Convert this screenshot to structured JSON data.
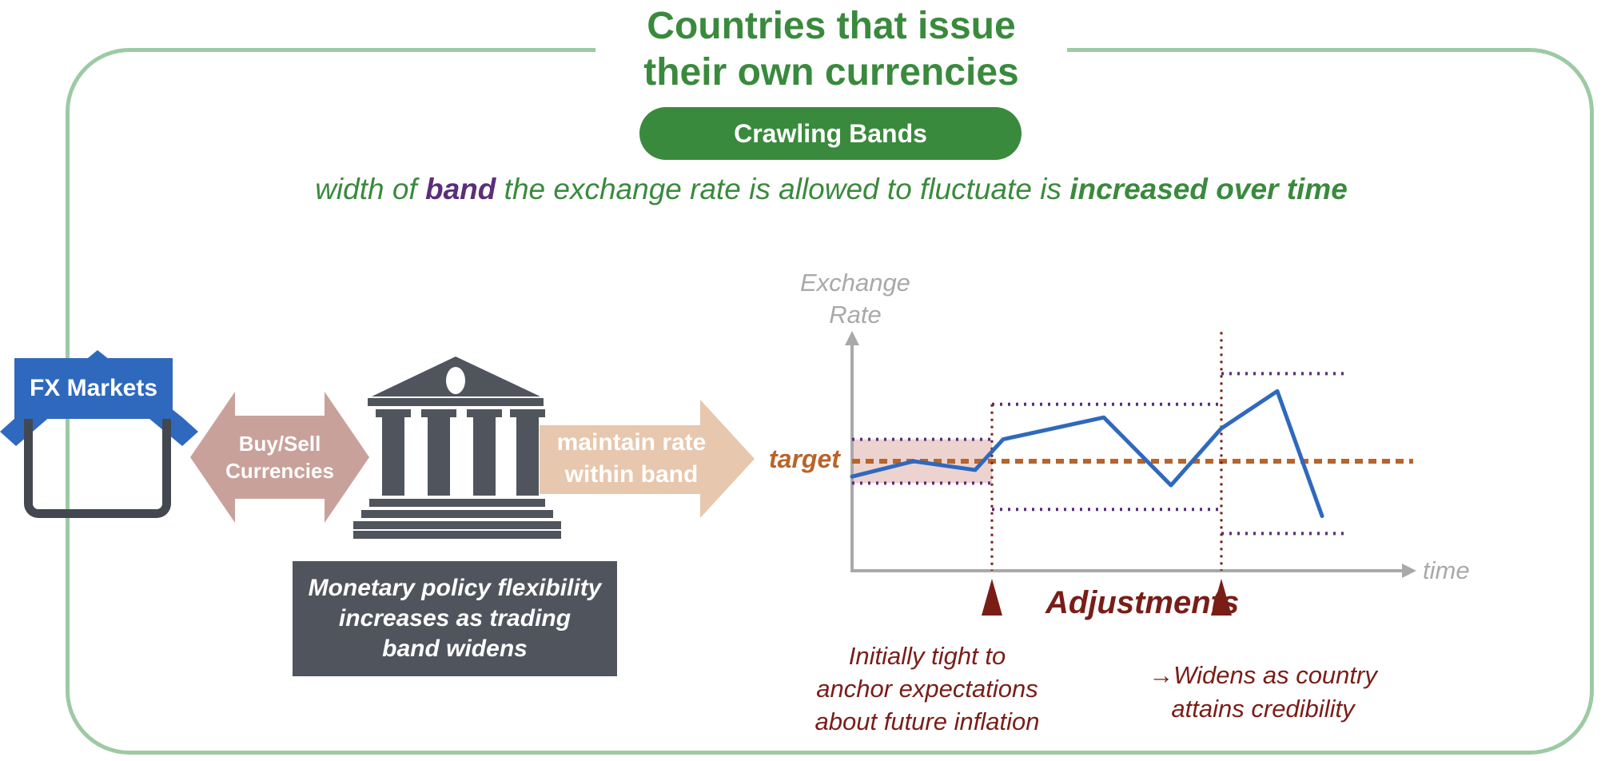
{
  "header": {
    "title_line1": "Countries that issue",
    "title_line2": "their own currencies",
    "pill_label": "Crawling Bands"
  },
  "subtitle": {
    "part1": "width of ",
    "band": "band",
    "part2": " the exchange rate is allowed to fluctuate is ",
    "emph": "increased over time"
  },
  "flow": {
    "fx_markets": "FX Markets",
    "buy_sell_line1": "Buy/Sell",
    "buy_sell_line2": "Currencies",
    "maintain_line1": "maintain rate",
    "maintain_line2": "within band",
    "callout_line1": "Monetary policy flexibility",
    "callout_line2": "increases as trading",
    "callout_line3": "band widens"
  },
  "chart_labels": {
    "y_axis_line1": "Exchange",
    "y_axis_line2": "Rate",
    "x_axis": "time",
    "target": "target",
    "adjustments": "Adjustments",
    "note_left_line1": "Initially tight to",
    "note_left_line2": "anchor expectations",
    "note_left_line3": "about future inflation",
    "note_right_line1": "→Widens as country",
    "note_right_line2": "attains credibility"
  },
  "colors": {
    "green": "#3a8a3d",
    "purple": "#5b2e7a",
    "blue": "#2f69be",
    "orange": "#b8642a",
    "maroon": "#7a1d17",
    "band_fill": "#ecd3d0",
    "arrow_rose": "#c9a19b",
    "arrow_peach": "#e7c7ad",
    "dark_gray": "#50545d"
  },
  "icons": [
    "fx-markets-icon",
    "bank-building-icon",
    "double-arrow-icon",
    "right-arrow-icon",
    "adjustment-marker-icon"
  ],
  "chart_data": {
    "type": "line",
    "xlabel": "time",
    "ylabel": "Exchange Rate",
    "xlim": [
      0,
      10
    ],
    "ylim": [
      0,
      10
    ],
    "target": 5,
    "adjustments": [
      2.5,
      6.6
    ],
    "bands": [
      {
        "x": [
          0,
          2.5
        ],
        "lower": 4.0,
        "upper": 6.0
      },
      {
        "x": [
          2.5,
          6.6
        ],
        "lower": 2.8,
        "upper": 7.6
      },
      {
        "x": [
          6.6,
          8.8
        ],
        "lower": 1.7,
        "upper": 9.0
      }
    ],
    "series": [
      {
        "values": [
          [
            0,
            4.3
          ],
          [
            1.1,
            5.0
          ],
          [
            2.2,
            4.6
          ],
          [
            2.7,
            6.0
          ],
          [
            4.5,
            7.0
          ],
          [
            5.7,
            3.9
          ],
          [
            6.6,
            6.5
          ],
          [
            7.6,
            8.2
          ],
          [
            8.4,
            2.5
          ]
        ]
      }
    ]
  }
}
